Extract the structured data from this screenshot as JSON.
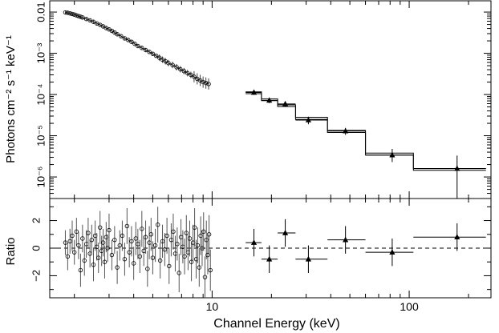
{
  "chart_data": [
    {
      "type": "scatter",
      "title": "",
      "ylabel": "Photons cm⁻² s⁻¹ keV⁻¹",
      "yscale": "log",
      "xscale": "log",
      "xlim": [
        1.5,
        260
      ],
      "ylim": [
        3e-07,
        0.015
      ],
      "y_ticks": [
        "0.01",
        "10⁻³",
        "10⁻⁴",
        "10⁻⁵",
        "10⁻⁶"
      ],
      "y_tick_values": [
        0.01,
        0.001,
        0.0001,
        1e-05,
        1e-06
      ],
      "series": [
        {
          "marker": "circle",
          "x": [
            1.8,
            1.85,
            1.9,
            1.95,
            2.0,
            2.05,
            2.1,
            2.15,
            2.2,
            2.3,
            2.4,
            2.5,
            2.6,
            2.7,
            2.8,
            2.9,
            3.0,
            3.1,
            3.2,
            3.3,
            3.45,
            3.6,
            3.75,
            3.9,
            4.05,
            4.2,
            4.4,
            4.6,
            4.8,
            5.0,
            5.2,
            5.4,
            5.6,
            5.8,
            6.0,
            6.3,
            6.6,
            6.9,
            7.2,
            7.5,
            7.8,
            8.1,
            8.4,
            8.7,
            9.0,
            9.3,
            9.6
          ],
          "y": [
            0.0098,
            0.0096,
            0.0093,
            0.009,
            0.0087,
            0.0083,
            0.008,
            0.0077,
            0.0074,
            0.0068,
            0.0063,
            0.0058,
            0.0053,
            0.0049,
            0.0045,
            0.0041,
            0.0038,
            0.0035,
            0.0032,
            0.0029,
            0.0026,
            0.0023,
            0.0021,
            0.0019,
            0.0017,
            0.0015,
            0.00135,
            0.0012,
            0.00108,
            0.00097,
            0.00087,
            0.00078,
            0.0007,
            0.00064,
            0.00058,
            0.00052,
            0.00046,
            0.00041,
            0.00037,
            0.00033,
            0.0003,
            0.00027,
            0.00024,
            0.00022,
            0.0002,
            0.00019,
            0.00018
          ]
        },
        {
          "marker": "triangle",
          "x": [
            16.3,
            19.5,
            23.5,
            30.8,
            47.5,
            82.0,
            175.0
          ],
          "y": [
            0.000112,
            7.2e-05,
            5.9e-05,
            2.4e-05,
            1.3e-05,
            3.4e-06,
            1.6e-06
          ],
          "xerr_low": [
            14.8,
            17.8,
            21.5,
            26.5,
            38.5,
            60.0,
            105.0
          ],
          "xerr_high": [
            17.8,
            21.5,
            26.5,
            38.5,
            60.0,
            105.0,
            245.0
          ],
          "yerr_low": [
            9.8e-05,
            6.2e-05,
            5e-05,
            1.9e-05,
            1.05e-05,
            2.3e-06,
            3e-07
          ],
          "yerr_high": [
            0.000126,
            8.3e-05,
            6.8e-05,
            2.9e-05,
            1.55e-05,
            4.8e-06,
            3.3e-06
          ]
        }
      ],
      "model_steps": {
        "edges": [
          14.8,
          17.8,
          21.5,
          26.5,
          38.5,
          60.0,
          105.0,
          245.0
        ],
        "upper": [
          0.000116,
          7.8e-05,
          5.6e-05,
          2.8e-05,
          1.35e-05,
          3.8e-06,
          1.6e-06
        ],
        "lower": [
          0.000105,
          7.1e-05,
          5.1e-05,
          2.5e-05,
          1.2e-05,
          3.4e-06,
          1.45e-06
        ]
      }
    },
    {
      "type": "scatter",
      "title": "",
      "ylabel": "Ratio",
      "xlabel": "Channel Energy (keV)",
      "xscale": "log",
      "xlim": [
        1.5,
        260
      ],
      "ylim": [
        -3.6,
        3.6
      ],
      "y_ticks": [
        "2",
        "0",
        "−2"
      ],
      "y_tick_values": [
        2,
        0,
        -2
      ],
      "x_ticks": [
        "10",
        "100"
      ],
      "x_tick_values": [
        10,
        100
      ],
      "reference_line": 0,
      "series": [
        {
          "marker": "triangle",
          "x": [
            16.3,
            19.5,
            23.5,
            30.8,
            47.5,
            82.0,
            175.0
          ],
          "y": [
            0.4,
            -0.8,
            1.1,
            -0.8,
            0.6,
            -0.3,
            0.8
          ],
          "xerr_low": [
            14.8,
            17.8,
            21.5,
            26.5,
            38.5,
            60.0,
            105.0
          ],
          "xerr_high": [
            17.8,
            21.5,
            26.5,
            38.5,
            60.0,
            105.0,
            245.0
          ],
          "yerr": [
            1.0,
            1.0,
            1.0,
            1.0,
            1.0,
            1.0,
            1.0
          ]
        },
        {
          "marker": "circle",
          "x": [
            1.8,
            1.85,
            1.9,
            1.95,
            2.0,
            2.05,
            2.1,
            2.15,
            2.2,
            2.25,
            2.3,
            2.35,
            2.4,
            2.45,
            2.5,
            2.55,
            2.6,
            2.65,
            2.7,
            2.75,
            2.8,
            2.85,
            2.9,
            2.95,
            3.0,
            3.1,
            3.2,
            3.3,
            3.4,
            3.5,
            3.6,
            3.7,
            3.8,
            3.9,
            4.0,
            4.1,
            4.2,
            4.3,
            4.4,
            4.5,
            4.6,
            4.7,
            4.8,
            4.9,
            5.0,
            5.15,
            5.3,
            5.45,
            5.6,
            5.75,
            5.9,
            6.05,
            6.2,
            6.35,
            6.5,
            6.65,
            6.8,
            6.95,
            7.1,
            7.25,
            7.4,
            7.55,
            7.7,
            7.85,
            8.0,
            8.15,
            8.3,
            8.45,
            8.6,
            8.75,
            8.9,
            9.05,
            9.2,
            9.35,
            9.5,
            9.65,
            9.8
          ],
          "y": [
            0.4,
            -0.6,
            0.5,
            0.9,
            -0.3,
            1.2,
            0.2,
            -1.6,
            0.7,
            -0.9,
            0.3,
            1.1,
            -0.4,
            0.6,
            -1.2,
            0.9,
            0.1,
            -0.7,
            1.5,
            -0.2,
            0.4,
            -1.0,
            0.8,
            0.0,
            1.3,
            -0.5,
            0.6,
            -1.4,
            0.2,
            0.9,
            -0.8,
            1.6,
            -0.3,
            0.5,
            -1.1,
            0.7,
            0.3,
            -0.6,
            1.4,
            -0.2,
            0.8,
            -1.5,
            0.4,
            1.0,
            -0.7,
            0.2,
            1.7,
            -0.9,
            0.5,
            -0.1,
            0.9,
            -1.3,
            0.6,
            1.2,
            -0.4,
            0.3,
            -1.8,
            0.8,
            0.1,
            -0.6,
            1.1,
            -0.3,
            0.7,
            -1.0,
            0.4,
            1.5,
            -0.8,
            0.2,
            -1.4,
            0.9,
            0.0,
            1.2,
            -2.1,
            0.6,
            -0.5,
            1.0,
            -1.6
          ],
          "yerr": [
            0.9,
            1.0,
            0.9,
            1.1,
            0.9,
            1.0,
            1.0,
            1.2,
            1.0,
            1.1,
            1.0,
            1.1,
            1.0,
            1.1,
            1.2,
            1.1,
            1.0,
            1.1,
            1.2,
            1.1,
            1.0,
            1.2,
            1.1,
            1.0,
            1.2,
            1.1,
            1.0,
            1.2,
            1.1,
            1.1,
            1.2,
            1.3,
            1.1,
            1.1,
            1.2,
            1.2,
            1.1,
            1.2,
            1.3,
            1.1,
            1.2,
            1.3,
            1.2,
            1.2,
            1.2,
            1.2,
            1.3,
            1.3,
            1.2,
            1.2,
            1.3,
            1.3,
            1.2,
            1.3,
            1.3,
            1.2,
            1.4,
            1.3,
            1.2,
            1.3,
            1.3,
            1.3,
            1.3,
            1.4,
            1.3,
            1.4,
            1.4,
            1.3,
            1.4,
            1.4,
            1.3,
            1.4,
            1.5,
            1.4,
            1.4,
            1.4,
            1.5
          ]
        }
      ]
    }
  ]
}
